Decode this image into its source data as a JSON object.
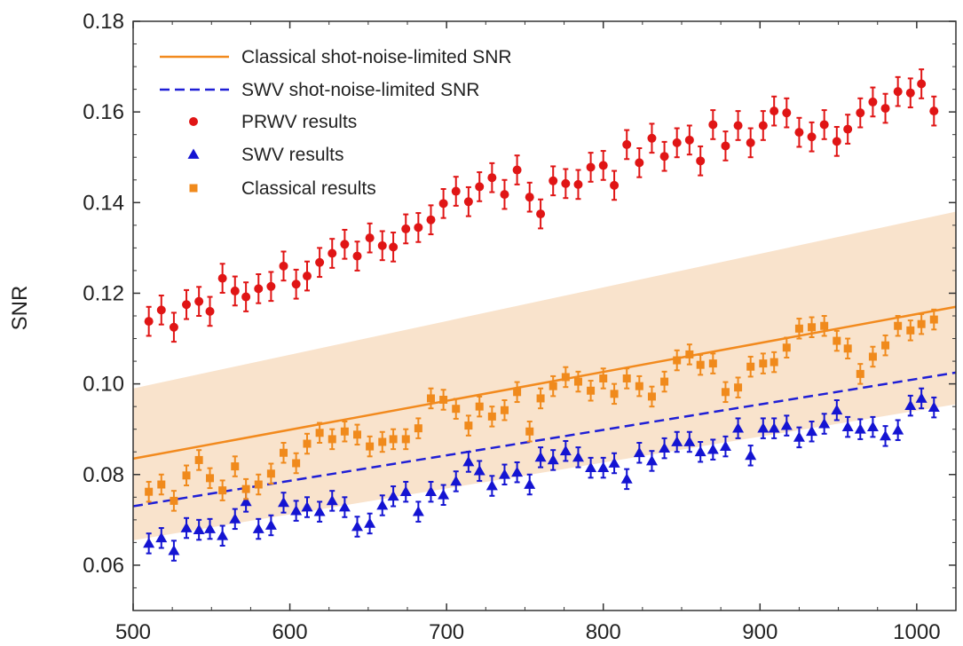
{
  "chart_data": {
    "type": "scatter",
    "title": "",
    "xlabel": "",
    "ylabel": "SNR",
    "xlim": [
      500,
      1025
    ],
    "ylim": [
      0.05,
      0.18
    ],
    "xticks": [
      500,
      600,
      700,
      800,
      900,
      1000
    ],
    "yticks": [
      0.06,
      0.08,
      0.1,
      0.12,
      0.14,
      0.16,
      0.18
    ],
    "ytick_labels": [
      "0.06",
      "0.08",
      "0.10",
      "0.12",
      "0.14",
      "0.16",
      "0.18"
    ],
    "grid": false,
    "legend_position": "top-left",
    "colors": {
      "classical_line": "#f28a1e",
      "swv_line": "#1f1fd6",
      "prwv": "#e01515",
      "swv": "#1414d2",
      "classical": "#f08a1c",
      "band": "#f9e3cc"
    },
    "band": {
      "x": [
        500,
        1025
      ],
      "lower": [
        0.0655,
        0.0955
      ],
      "upper": [
        0.099,
        0.138
      ]
    },
    "lines": [
      {
        "name": "Classical shot-noise-limited SNR",
        "style": "solid",
        "x": [
          500,
          1025
        ],
        "y": [
          0.0835,
          0.117
        ]
      },
      {
        "name": "SWV shot-noise-limited SNR",
        "style": "dashed",
        "x": [
          500,
          1025
        ],
        "y": [
          0.073,
          0.1025
        ]
      }
    ],
    "series": [
      {
        "name": "PRWV results",
        "marker": "circle",
        "error": 0.0032,
        "x": [
          510,
          518,
          526,
          534,
          542,
          549,
          557,
          565,
          572,
          580,
          588,
          596,
          604,
          611,
          619,
          627,
          635,
          643,
          651,
          659,
          666,
          674,
          682,
          690,
          698,
          706,
          714,
          721,
          729,
          737,
          745,
          753,
          760,
          768,
          776,
          784,
          792,
          800,
          807,
          815,
          823,
          831,
          839,
          847,
          855,
          862,
          870,
          878,
          886,
          894,
          902,
          909,
          917,
          925,
          933,
          941,
          949,
          956,
          964,
          972,
          980,
          988,
          996,
          1003,
          1011
        ],
        "y": [
          0.1138,
          0.1163,
          0.1125,
          0.1175,
          0.1182,
          0.116,
          0.1233,
          0.1205,
          0.1192,
          0.121,
          0.1215,
          0.126,
          0.122,
          0.1238,
          0.1268,
          0.1288,
          0.1308,
          0.1282,
          0.1322,
          0.1305,
          0.1302,
          0.1342,
          0.1345,
          0.1362,
          0.1398,
          0.1425,
          0.1402,
          0.1435,
          0.1455,
          0.1418,
          0.1472,
          0.1412,
          0.1375,
          0.1448,
          0.1442,
          0.144,
          0.1478,
          0.1482,
          0.1438,
          0.1528,
          0.1488,
          0.1542,
          0.1502,
          0.1532,
          0.1538,
          0.1492,
          0.1572,
          0.1525,
          0.157,
          0.1532,
          0.157,
          0.1602,
          0.1598,
          0.1555,
          0.1545,
          0.1572,
          0.1535,
          0.1562,
          0.1598,
          0.1622,
          0.1608,
          0.1645,
          0.1642,
          0.1662,
          0.1602
        ]
      },
      {
        "name": "SWV results",
        "marker": "triangle",
        "error": 0.0022,
        "x": [
          510,
          518,
          526,
          534,
          542,
          549,
          557,
          565,
          572,
          580,
          588,
          596,
          604,
          611,
          619,
          627,
          635,
          643,
          651,
          659,
          666,
          674,
          682,
          690,
          698,
          706,
          714,
          721,
          729,
          737,
          745,
          753,
          760,
          768,
          776,
          784,
          792,
          800,
          807,
          815,
          823,
          831,
          839,
          847,
          855,
          862,
          870,
          878,
          886,
          894,
          902,
          909,
          917,
          925,
          933,
          941,
          949,
          956,
          964,
          972,
          980,
          988,
          996,
          1003,
          1011
        ],
        "y": [
          0.0648,
          0.066,
          0.0632,
          0.0682,
          0.0678,
          0.068,
          0.0665,
          0.0702,
          0.074,
          0.068,
          0.0688,
          0.0738,
          0.072,
          0.0728,
          0.0718,
          0.0742,
          0.0728,
          0.0685,
          0.0692,
          0.0732,
          0.0752,
          0.0762,
          0.0718,
          0.0762,
          0.0755,
          0.0785,
          0.0828,
          0.0808,
          0.0775,
          0.08,
          0.0805,
          0.0778,
          0.0838,
          0.0832,
          0.0852,
          0.0838,
          0.0815,
          0.0815,
          0.0825,
          0.079,
          0.0848,
          0.083,
          0.0858,
          0.0872,
          0.0872,
          0.085,
          0.0855,
          0.0862,
          0.0902,
          0.0842,
          0.0902,
          0.0902,
          0.0908,
          0.0882,
          0.0895,
          0.0912,
          0.0942,
          0.0905,
          0.09,
          0.0905,
          0.0885,
          0.0898,
          0.0952,
          0.0968,
          0.0948
        ]
      },
      {
        "name": "Classical results",
        "marker": "square",
        "error": 0.0022,
        "x": [
          510,
          518,
          526,
          534,
          542,
          549,
          557,
          565,
          572,
          580,
          588,
          596,
          604,
          611,
          619,
          627,
          635,
          643,
          651,
          659,
          666,
          674,
          682,
          690,
          698,
          706,
          714,
          721,
          729,
          737,
          745,
          753,
          760,
          768,
          776,
          784,
          792,
          800,
          807,
          815,
          823,
          831,
          839,
          847,
          855,
          862,
          870,
          878,
          886,
          894,
          902,
          909,
          917,
          925,
          933,
          941,
          949,
          956,
          964,
          972,
          980,
          988,
          996,
          1003,
          1011
        ],
        "y": [
          0.0762,
          0.0778,
          0.0742,
          0.0798,
          0.0832,
          0.0792,
          0.0765,
          0.0818,
          0.0768,
          0.0778,
          0.0802,
          0.0848,
          0.0825,
          0.0868,
          0.0892,
          0.0878,
          0.0895,
          0.0888,
          0.0862,
          0.0872,
          0.0878,
          0.0878,
          0.0902,
          0.0968,
          0.0965,
          0.0945,
          0.0908,
          0.095,
          0.0928,
          0.0942,
          0.0982,
          0.0895,
          0.0968,
          0.0995,
          0.1015,
          0.1005,
          0.0985,
          0.1012,
          0.0978,
          0.1012,
          0.0995,
          0.0972,
          0.1005,
          0.1052,
          0.1065,
          0.1042,
          0.1045,
          0.0982,
          0.0992,
          0.1038,
          0.1045,
          0.1048,
          0.108,
          0.1122,
          0.1125,
          0.1128,
          0.1095,
          0.1078,
          0.1022,
          0.106,
          0.1085,
          0.1128,
          0.1118,
          0.1132,
          0.1142
        ]
      }
    ]
  }
}
